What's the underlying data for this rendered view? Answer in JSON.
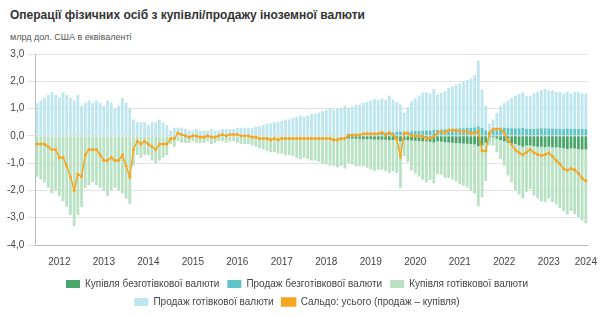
{
  "chart_data": {
    "type": "bar",
    "title": "Операції фізичних осіб з купівлі/продажу іноземної валюти",
    "ylabel": "млрд дол. США в еквіваленті",
    "stacked": true,
    "grid": true,
    "legend": "bottom",
    "ylim": [
      -4,
      3
    ],
    "yticks": [
      {
        "value": -4,
        "label": "-4,0"
      },
      {
        "value": -3,
        "label": "-3,0"
      },
      {
        "value": -2,
        "label": "-2,0"
      },
      {
        "value": -1,
        "label": "-1,0"
      },
      {
        "value": 0,
        "label": "0,0"
      },
      {
        "value": 1,
        "label": "1,0"
      },
      {
        "value": 2,
        "label": "2,0"
      },
      {
        "value": 3,
        "label": "3,0"
      }
    ],
    "categories": [
      null,
      null,
      null,
      null,
      null,
      null,
      "2012",
      null,
      null,
      null,
      null,
      null,
      null,
      null,
      null,
      null,
      null,
      null,
      "2013",
      null,
      null,
      null,
      null,
      null,
      null,
      null,
      null,
      null,
      null,
      null,
      "2014",
      null,
      null,
      null,
      null,
      null,
      null,
      null,
      null,
      null,
      null,
      null,
      "2015",
      null,
      null,
      null,
      null,
      null,
      null,
      null,
      null,
      null,
      null,
      null,
      "2016",
      null,
      null,
      null,
      null,
      null,
      null,
      null,
      null,
      null,
      null,
      null,
      "2017",
      null,
      null,
      null,
      null,
      null,
      null,
      null,
      null,
      null,
      null,
      null,
      "2018",
      null,
      null,
      null,
      null,
      null,
      null,
      null,
      null,
      null,
      null,
      null,
      "2019",
      null,
      null,
      null,
      null,
      null,
      null,
      null,
      null,
      null,
      null,
      null,
      "2020",
      null,
      null,
      null,
      null,
      null,
      null,
      null,
      null,
      null,
      null,
      null,
      "2021",
      null,
      null,
      null,
      null,
      null,
      null,
      null,
      null,
      null,
      null,
      null,
      "2022",
      null,
      null,
      null,
      null,
      null,
      null,
      null,
      null,
      null,
      null,
      null,
      "2023",
      null,
      null,
      null,
      null,
      null,
      null,
      null,
      null,
      null,
      "2024"
    ],
    "series": [
      {
        "name": "Купівля безготівкової валюти",
        "type": "bar",
        "color": "#4aa56a",
        "values": [
          null,
          null,
          null,
          null,
          null,
          null,
          null,
          null,
          null,
          null,
          null,
          null,
          null,
          null,
          null,
          null,
          null,
          null,
          null,
          null,
          null,
          null,
          null,
          null,
          null,
          null,
          null,
          null,
          null,
          null,
          null,
          null,
          null,
          null,
          null,
          null,
          null,
          null,
          null,
          null,
          null,
          null,
          null,
          null,
          null,
          null,
          null,
          null,
          null,
          null,
          null,
          null,
          null,
          null,
          null,
          null,
          null,
          null,
          null,
          null,
          null,
          null,
          null,
          null,
          null,
          null,
          null,
          null,
          null,
          null,
          null,
          null,
          null,
          null,
          null,
          null,
          null,
          null,
          null,
          null,
          null,
          null,
          null,
          null,
          -0.1,
          -0.1,
          -0.11,
          -0.11,
          -0.12,
          -0.12,
          -0.12,
          -0.13,
          -0.13,
          -0.14,
          -0.14,
          -0.15,
          -0.15,
          -0.16,
          -0.2,
          -0.15,
          -0.16,
          -0.17,
          -0.18,
          -0.19,
          -0.2,
          -0.21,
          -0.22,
          -0.24,
          -0.2,
          -0.22,
          -0.23,
          -0.24,
          -0.25,
          -0.26,
          -0.27,
          -0.28,
          -0.29,
          -0.3,
          -0.32,
          -0.38,
          -0.35,
          -0.25,
          -0.05,
          -0.05,
          -0.1,
          -0.15,
          -0.2,
          -0.25,
          -0.3,
          -0.3,
          -0.35,
          -0.4,
          -0.35,
          -0.35,
          -0.38,
          -0.4,
          -0.4,
          -0.42,
          -0.4,
          -0.42,
          -0.42,
          -0.44,
          -0.45,
          -0.48,
          -0.45,
          -0.46,
          -0.48,
          -0.5,
          -0.5
        ]
      },
      {
        "name": "Продаж безготівкової валюти",
        "type": "bar",
        "color": "#5fc4c8",
        "values": [
          null,
          null,
          null,
          null,
          null,
          null,
          null,
          null,
          null,
          null,
          null,
          null,
          null,
          null,
          null,
          null,
          null,
          null,
          null,
          null,
          null,
          null,
          null,
          null,
          null,
          null,
          null,
          null,
          null,
          null,
          null,
          null,
          null,
          null,
          null,
          null,
          null,
          null,
          null,
          null,
          null,
          null,
          null,
          null,
          null,
          null,
          null,
          null,
          null,
          null,
          null,
          null,
          null,
          null,
          null,
          null,
          null,
          null,
          null,
          null,
          null,
          null,
          null,
          null,
          null,
          null,
          null,
          null,
          null,
          null,
          null,
          null,
          null,
          null,
          null,
          null,
          null,
          null,
          null,
          null,
          null,
          null,
          null,
          null,
          0.08,
          0.08,
          0.09,
          0.09,
          0.1,
          0.1,
          0.1,
          0.11,
          0.11,
          0.12,
          0.12,
          0.13,
          0.13,
          0.14,
          0.15,
          0.15,
          0.16,
          0.17,
          0.18,
          0.18,
          0.19,
          0.2,
          0.2,
          0.22,
          0.22,
          0.23,
          0.24,
          0.25,
          0.26,
          0.27,
          0.28,
          0.28,
          0.3,
          0.3,
          0.32,
          0.35,
          0.3,
          0.2,
          0.15,
          0.2,
          0.25,
          0.3,
          0.3,
          0.3,
          0.28,
          0.28,
          0.28,
          0.3,
          0.25,
          0.25,
          0.26,
          0.27,
          0.28,
          0.28,
          0.27,
          0.27,
          0.26,
          0.26,
          0.25,
          0.27,
          0.25,
          0.26,
          0.26,
          0.25,
          0.25
        ]
      },
      {
        "name": "Купівля готівкової валюти",
        "type": "bar",
        "color": "#b8e2c3",
        "values": [
          -1.5,
          -1.6,
          -1.7,
          -1.9,
          -2.1,
          -2.0,
          -2.2,
          -2.4,
          -2.6,
          -2.9,
          -3.3,
          -2.9,
          -2.6,
          -1.9,
          -1.8,
          -1.7,
          -1.8,
          -1.9,
          -2.0,
          -2.2,
          -2.0,
          -1.9,
          -2.0,
          -2.1,
          -2.3,
          -2.5,
          -1.1,
          -0.7,
          -0.8,
          -0.7,
          -0.7,
          -0.9,
          -1.0,
          -0.9,
          -0.8,
          -0.7,
          -0.3,
          -0.4,
          -0.2,
          -0.25,
          -0.25,
          -0.25,
          -0.2,
          -0.25,
          -0.25,
          -0.25,
          -0.2,
          -0.3,
          -0.25,
          -0.2,
          -0.2,
          -0.25,
          -0.2,
          -0.2,
          -0.25,
          -0.3,
          -0.3,
          -0.3,
          -0.35,
          -0.4,
          -0.45,
          -0.5,
          -0.55,
          -0.6,
          -0.6,
          -0.65,
          -0.65,
          -0.7,
          -0.7,
          -0.75,
          -0.8,
          -0.85,
          -0.8,
          -0.85,
          -0.9,
          -0.9,
          -0.95,
          -1.0,
          -1.05,
          -1.1,
          -1.1,
          -1.15,
          -1.1,
          -1.2,
          -0.9,
          -0.95,
          -1.0,
          -1.0,
          -1.0,
          -1.05,
          -1.1,
          -1.15,
          -1.1,
          -1.1,
          -1.15,
          -1.2,
          -1.15,
          -1.2,
          -1.7,
          -0.6,
          -0.8,
          -1.1,
          -1.2,
          -1.3,
          -1.4,
          -1.5,
          -1.4,
          -1.5,
          -1.2,
          -1.2,
          -1.3,
          -1.3,
          -1.35,
          -1.4,
          -1.5,
          -1.55,
          -1.6,
          -1.7,
          -1.8,
          -2.2,
          -1.9,
          -1.4,
          -0.3,
          -0.3,
          -0.5,
          -0.7,
          -0.9,
          -1.2,
          -1.4,
          -1.7,
          -1.8,
          -1.9,
          -1.7,
          -1.6,
          -1.8,
          -1.9,
          -2.0,
          -2.0,
          -1.9,
          -2.0,
          -2.1,
          -2.2,
          -2.3,
          -2.4,
          -2.3,
          -2.4,
          -2.5,
          -2.6,
          -2.7
        ]
      },
      {
        "name": "Продаж готівкової валюти",
        "type": "bar",
        "color": "#bde6ef",
        "values": [
          1.2,
          1.3,
          1.4,
          1.5,
          1.6,
          1.5,
          1.4,
          1.6,
          1.5,
          1.4,
          1.3,
          1.5,
          1.1,
          1.2,
          1.3,
          1.2,
          1.3,
          1.2,
          1.1,
          1.3,
          1.2,
          1.0,
          1.1,
          1.4,
          1.2,
          1.0,
          0.6,
          0.5,
          0.5,
          0.5,
          0.4,
          0.5,
          0.5,
          0.6,
          0.5,
          0.4,
          0.2,
          0.3,
          0.3,
          0.3,
          0.25,
          0.2,
          0.2,
          0.25,
          0.2,
          0.2,
          0.2,
          0.25,
          0.2,
          0.2,
          0.25,
          0.25,
          0.25,
          0.25,
          0.3,
          0.3,
          0.3,
          0.3,
          0.3,
          0.35,
          0.35,
          0.4,
          0.45,
          0.45,
          0.5,
          0.5,
          0.55,
          0.6,
          0.6,
          0.65,
          0.7,
          0.75,
          0.7,
          0.75,
          0.8,
          0.8,
          0.85,
          0.9,
          0.95,
          1.0,
          0.95,
          1.0,
          1.0,
          1.1,
          0.95,
          1.0,
          1.05,
          1.05,
          1.1,
          1.15,
          1.2,
          1.25,
          1.2,
          1.25,
          1.2,
          1.35,
          1.2,
          1.1,
          1.0,
          0.7,
          0.9,
          1.1,
          1.2,
          1.3,
          1.4,
          1.4,
          1.35,
          1.5,
          1.3,
          1.35,
          1.4,
          1.5,
          1.55,
          1.6,
          1.65,
          1.7,
          1.75,
          1.8,
          1.9,
          2.4,
          1.4,
          0.9,
          0.3,
          0.4,
          0.6,
          0.8,
          0.9,
          1.0,
          1.1,
          1.2,
          1.25,
          1.3,
          1.2,
          1.2,
          1.3,
          1.35,
          1.4,
          1.45,
          1.4,
          1.4,
          1.35,
          1.35,
          1.3,
          1.35,
          1.3,
          1.35,
          1.35,
          1.3,
          1.3
        ]
      },
      {
        "name": "Сальдо: усього (продаж – купівля)",
        "type": "line",
        "color": "#f5a623",
        "marker": "circle",
        "values": [
          -0.3,
          -0.3,
          -0.3,
          -0.4,
          -0.5,
          -0.5,
          -0.8,
          -0.8,
          -1.1,
          -1.5,
          -2.0,
          -1.4,
          -1.5,
          -0.7,
          -0.5,
          -0.5,
          -0.5,
          -0.7,
          -0.9,
          -0.9,
          -0.8,
          -0.9,
          -0.9,
          -0.7,
          -1.1,
          -1.5,
          -0.5,
          -0.2,
          -0.3,
          -0.2,
          -0.3,
          -0.4,
          -0.5,
          -0.3,
          -0.3,
          -0.3,
          -0.1,
          -0.1,
          0.1,
          0.05,
          0,
          -0.05,
          0,
          0,
          -0.05,
          -0.05,
          0,
          -0.05,
          -0.05,
          0,
          0.05,
          0,
          0.05,
          0.05,
          0.05,
          0,
          0,
          0,
          -0.05,
          -0.05,
          -0.1,
          -0.1,
          -0.1,
          -0.15,
          -0.1,
          -0.15,
          -0.1,
          -0.1,
          -0.1,
          -0.1,
          -0.1,
          -0.1,
          -0.1,
          -0.1,
          -0.1,
          -0.1,
          -0.1,
          -0.1,
          -0.1,
          -0.1,
          -0.15,
          -0.15,
          -0.1,
          -0.1,
          0.03,
          0.03,
          0.03,
          0.03,
          0.08,
          0.08,
          0.08,
          0.08,
          0.08,
          0.13,
          0.03,
          0.13,
          0.03,
          -0.12,
          -0.75,
          0.1,
          0.1,
          0,
          0,
          -0.01,
          -0.01,
          -0.11,
          -0.07,
          -0.02,
          0.12,
          0.16,
          0.11,
          0.21,
          0.21,
          0.21,
          0.16,
          0.15,
          0.16,
          0.1,
          0.1,
          0.17,
          -0.55,
          -0.55,
          0.1,
          0.25,
          0.25,
          0.25,
          0.1,
          -0.15,
          -0.32,
          -0.52,
          -0.62,
          -0.7,
          -0.6,
          -0.5,
          -0.62,
          -0.68,
          -0.72,
          -0.69,
          -0.63,
          -0.75,
          -0.91,
          -1.03,
          -1.2,
          -1.26,
          -1.2,
          -1.25,
          -1.37,
          -1.55,
          -1.65
        ]
      }
    ]
  }
}
